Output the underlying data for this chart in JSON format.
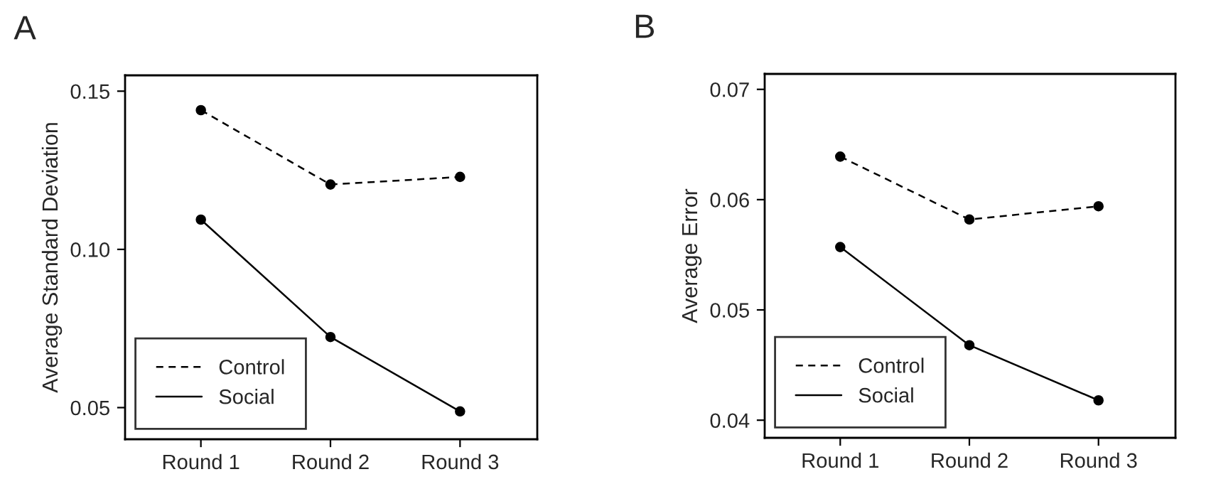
{
  "chart_data": [
    {
      "type": "line",
      "title": "A",
      "ylabel": "Average Standard Deviation",
      "categories": [
        "Round 1",
        "Round 2",
        "Round 3"
      ],
      "series": [
        {
          "name": "Control",
          "color": "#000000",
          "line_style": "dashed",
          "values": [
            0.144,
            0.1205,
            0.1229
          ]
        },
        {
          "name": "Social",
          "color": "#000000",
          "line_style": "solid",
          "values": [
            0.1094,
            0.0723,
            0.0488
          ]
        }
      ],
      "ylim": [
        0.04,
        0.155
      ],
      "yticks": [
        {
          "value": 0.05,
          "label": "0.05"
        },
        {
          "value": 0.1,
          "label": "0.10"
        },
        {
          "value": 0.15,
          "label": "0.15"
        }
      ],
      "marker": "circle",
      "grid": false,
      "legend": "bottom left"
    },
    {
      "type": "line",
      "title": "B",
      "ylabel": "Average Error",
      "categories": [
        "Round 1",
        "Round 2",
        "Round 3"
      ],
      "series": [
        {
          "name": "Control",
          "color": "#000000",
          "line_style": "dashed",
          "values": [
            0.0639,
            0.0582,
            0.0594
          ]
        },
        {
          "name": "Social",
          "color": "#000000",
          "line_style": "solid",
          "values": [
            0.0557,
            0.0468,
            0.0418
          ]
        }
      ],
      "ylim": [
        0.0384,
        0.0714
      ],
      "yticks": [
        {
          "value": 0.04,
          "label": "0.04"
        },
        {
          "value": 0.05,
          "label": "0.05"
        },
        {
          "value": 0.06,
          "label": "0.06"
        },
        {
          "value": 0.07,
          "label": "0.07"
        }
      ],
      "marker": "circle",
      "grid": false,
      "legend": "bottom left"
    }
  ]
}
